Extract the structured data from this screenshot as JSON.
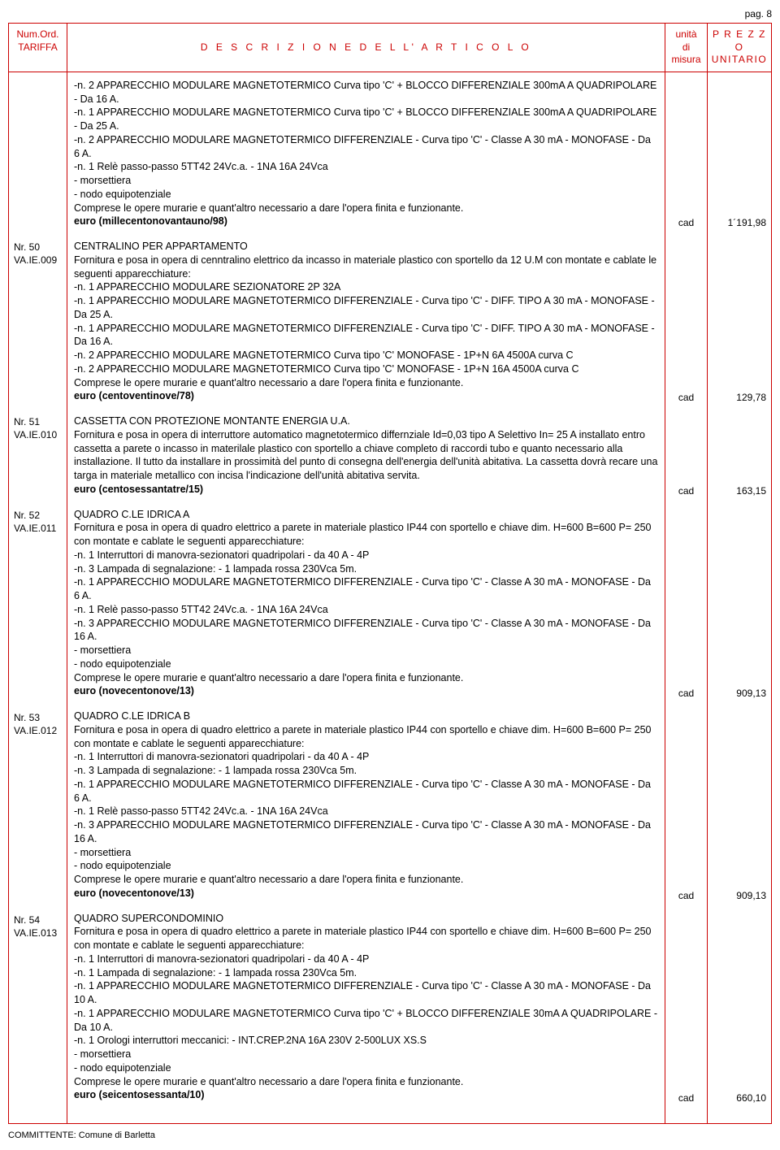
{
  "page_label": "pag. 8",
  "header": {
    "tariffa": "Num.Ord.\nTARIFFA",
    "descrizione": "D E S C R I Z I O N E   D E L L' A R T I C O L O",
    "unita": "unità\ndi\nmisura",
    "prezzo": "P R E Z Z O\nUNITARIO"
  },
  "committente": "COMMITTENTE: Comune di Barletta",
  "items": [
    {
      "ref1": "",
      "ref2": "",
      "title": "",
      "body": "-n. 2 APPARECCHIO MODULARE MAGNETOTERMICO  Curva tipo 'C' + BLOCCO DIFFERENZIALE  300mA A QUADRIPOLARE - Da 16 A.\n-n. 1 APPARECCHIO MODULARE MAGNETOTERMICO  Curva tipo 'C' + BLOCCO DIFFERENZIALE  300mA A QUADRIPOLARE - Da 25 A.\n-n. 2 APPARECCHIO MODULARE MAGNETOTERMICO DIFFERENZIALE  - Curva tipo 'C' - Classe A 30 mA - MONOFASE - Da 6 A.\n-n. 1 Relè passo-passo 5TT42 24Vc.a. - 1NA 16A 24Vca\n- morsettiera\n- nodo equipotenziale\nComprese le opere murarie e quant'altro necessario a dare l'opera finita e funzionante.",
      "euro": "euro (millecentonovantauno/98)",
      "unit": "cad",
      "price": "1´191,98"
    },
    {
      "ref1": "Nr. 50",
      "ref2": "VA.IE.009",
      "title": "CENTRALINO PER APPARTAMENTO",
      "body": "Fornitura e posa in opera di cenntralino elettrico da incasso in materiale plastico con sportello da 12 U.M con montate e cablate le seguenti apparecchiature:\n-n. 1 APPARECCHIO MODULARE SEZIONATORE 2P 32A\n-n. 1 APPARECCHIO MODULARE MAGNETOTERMICO DIFFERENZIALE  - Curva tipo 'C' - DIFF. TIPO A 30 mA - MONOFASE - Da 25 A.\n-n. 1 APPARECCHIO MODULARE MAGNETOTERMICO DIFFERENZIALE  - Curva tipo 'C' - DIFF. TIPO A 30 mA - MONOFASE - Da 16 A.\n-n. 2 APPARECCHIO MODULARE MAGNETOTERMICO  Curva tipo 'C' MONOFASE - 1P+N 6A 4500A curva C\n-n. 2 APPARECCHIO MODULARE MAGNETOTERMICO  Curva tipo 'C' MONOFASE - 1P+N 16A 4500A curva C\nComprese le opere murarie e quant'altro necessario a dare l'opera finita e funzionante.",
      "euro": "euro (centoventinove/78)",
      "unit": "cad",
      "price": "129,78"
    },
    {
      "ref1": "Nr. 51",
      "ref2": "VA.IE.010",
      "title": "CASSETTA CON PROTEZIONE MONTANTE ENERGIA U.A.",
      "body": "Fornitura e posa in opera di interruttore automatico magnetotermico differnziale Id=0,03 tipo A Selettivo In= 25 A installato entro cassetta a parete o incasso in materilale plastico con sportello a chiave completo di raccordi tubo e quanto necessario alla installazione. Il tutto da installare in prossimità del punto di consegna dell'energia dell'unità abitativa. La cassetta dovrà recare una targa in materiale metallico con incisa l'indicazione dell'unità abitativa servita.",
      "euro": "euro (centosessantatre/15)",
      "unit": "cad",
      "price": "163,15"
    },
    {
      "ref1": "Nr. 52",
      "ref2": "VA.IE.011",
      "title": "QUADRO C.LE IDRICA A",
      "body": "Fornitura e posa in opera di quadro elettrico a parete in materiale plastico IP44 con sportello e chiave dim. H=600 B=600  P= 250  con montate e cablate le seguenti apparecchiature:\n-n.  1  Interruttori di manovra-sezionatori quadripolari - da 40 A - 4P\n-n. 3 Lampada di segnalazione: - 1 lampada rossa 230Vca 5m.\n-n. 1 APPARECCHIO MODULARE MAGNETOTERMICO DIFFERENZIALE  - Curva tipo 'C' - Classe A 30 mA - MONOFASE - Da 6 A.\n-n. 1 Relè passo-passo 5TT42 24Vc.a. - 1NA 16A 24Vca\n-n. 3 APPARECCHIO MODULARE MAGNETOTERMICO DIFFERENZIALE  - Curva tipo 'C' - Classe A 30 mA - MONOFASE - Da 16 A.\n- morsettiera\n- nodo equipotenziale\nComprese le opere murarie e quant'altro necessario a dare l'opera finita e funzionante.",
      "euro": "euro (novecentonove/13)",
      "unit": "cad",
      "price": "909,13"
    },
    {
      "ref1": "Nr. 53",
      "ref2": "VA.IE.012",
      "title": "QUADRO C.LE IDRICA B",
      "body": "Fornitura e posa in opera di quadro elettrico a parete in materiale plastico IP44 con sportello e chiave dim. H=600 B=600  P= 250  con montate e cablate le seguenti apparecchiature:\n-n.  1  Interruttori di manovra-sezionatori quadripolari - da 40 A - 4P\n-n. 3 Lampada di segnalazione: - 1 lampada rossa 230Vca 5m.\n-n. 1 APPARECCHIO MODULARE MAGNETOTERMICO DIFFERENZIALE  - Curva tipo 'C' - Classe A 30 mA - MONOFASE - Da 6 A.\n-n. 1 Relè passo-passo 5TT42 24Vc.a. - 1NA 16A 24Vca\n-n. 3 APPARECCHIO MODULARE MAGNETOTERMICO DIFFERENZIALE  - Curva tipo 'C' - Classe A 30 mA - MONOFASE - Da 16 A.\n- morsettiera\n- nodo equipotenziale\nComprese le opere murarie e quant'altro necessario a dare l'opera finita e funzionante.",
      "euro": "euro (novecentonove/13)",
      "unit": "cad",
      "price": "909,13"
    },
    {
      "ref1": "Nr. 54",
      "ref2": "VA.IE.013",
      "title": "QUADRO SUPERCONDOMINIO",
      "body": "Fornitura e posa in opera di quadro elettrico a parete in materiale plastico IP44 con sportello e chiave dim. H=600 B=600  P= 250  con montate e cablate le seguenti apparecchiature:\n-n.  1  Interruttori di manovra-sezionatori quadripolari - da 40 A - 4P\n-n. 1 Lampada di segnalazione: - 1 lampada rossa 230Vca 5m.\n-n. 1 APPARECCHIO MODULARE MAGNETOTERMICO DIFFERENZIALE - Curva tipo 'C' - Classe A 30 mA - MONOFASE - Da 10 A.\n-n. 1 APPARECCHIO MODULARE MAGNETOTERMICO Curva tipo 'C' + BLOCCO DIFFERENZIALE  30mA A QUADRIPOLARE - Da 10 A.\n-n. 1 Orologi interruttori meccanici: - INT.CREP.2NA 16A 230V 2-500LUX XS.S\n- morsettiera\n- nodo equipotenziale\nComprese le opere murarie e quant'altro necessario a dare l'opera finita e funzionante.",
      "euro": "euro (seicentosessanta/10)",
      "unit": "cad",
      "price": "660,10"
    }
  ]
}
